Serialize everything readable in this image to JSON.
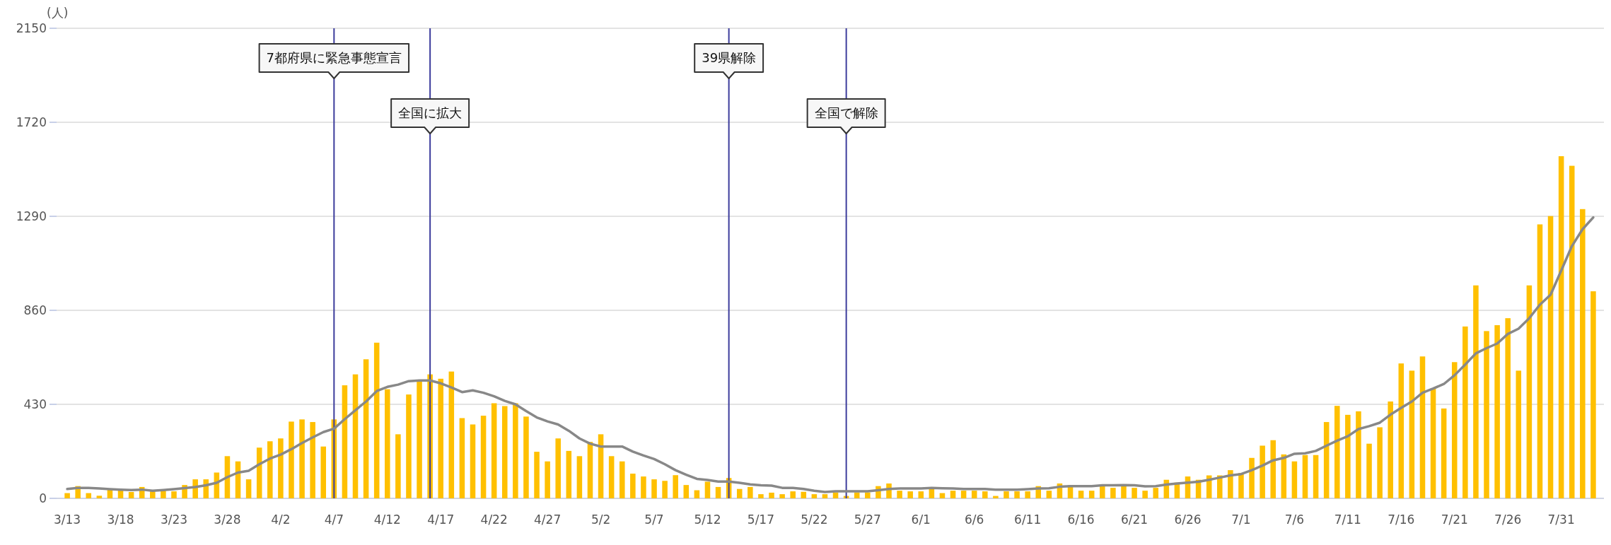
{
  "chart_data": {
    "type": "bar",
    "ylabel": "(人)",
    "x": [
      "--03-13",
      "--03-14",
      "--03-15",
      "--03-16",
      "--03-17",
      "--03-18",
      "--03-19",
      "--03-20",
      "--03-21",
      "--03-22",
      "--03-23",
      "--03-24",
      "--03-25",
      "--03-26",
      "--03-27",
      "--03-28",
      "--03-29",
      "--03-30",
      "--03-31",
      "--04-01",
      "--04-02",
      "--04-03",
      "--04-04",
      "--04-05",
      "--04-06",
      "--04-07",
      "--04-08",
      "--04-09",
      "--04-10",
      "--04-11",
      "--04-12",
      "--04-13",
      "--04-14",
      "--04-15",
      "--04-16",
      "--04-17",
      "--04-18",
      "--04-19",
      "--04-20",
      "--04-21",
      "--04-22",
      "--04-23",
      "--04-24",
      "--04-25",
      "--04-26",
      "--04-27",
      "--04-28",
      "--04-29",
      "--04-30",
      "--05-01",
      "--05-02",
      "--05-03",
      "--05-04",
      "--05-05",
      "--05-06",
      "--05-07",
      "--05-08",
      "--05-09",
      "--05-10",
      "--05-11",
      "--05-12",
      "--05-13",
      "--05-14",
      "--05-15",
      "--05-16",
      "--05-17",
      "--05-18",
      "--05-19",
      "--05-20",
      "--05-21",
      "--05-22",
      "--05-23",
      "--05-24",
      "--05-25",
      "--05-26",
      "--05-27",
      "--05-28",
      "--05-29",
      "--05-30",
      "--05-31",
      "--06-01",
      "--06-02",
      "--06-03",
      "--06-04",
      "--06-05",
      "--06-06",
      "--06-07",
      "--06-08",
      "--06-09",
      "--06-10",
      "--06-11",
      "--06-12",
      "--06-13",
      "--06-14",
      "--06-15",
      "--06-16",
      "--06-17",
      "--06-18",
      "--06-19",
      "--06-20",
      "--06-21",
      "--06-22",
      "--06-23",
      "--06-24",
      "--06-25",
      "--06-26",
      "--06-27",
      "--06-28",
      "--06-29",
      "--06-30",
      "--07-01",
      "--07-02",
      "--07-03",
      "--07-04",
      "--07-05",
      "--07-06",
      "--07-07",
      "--07-08",
      "--07-09",
      "--07-10",
      "--07-11",
      "--07-12",
      "--07-13",
      "--07-14",
      "--07-15",
      "--07-16",
      "--07-17",
      "--07-18",
      "--07-19",
      "--07-20",
      "--07-21",
      "--07-22",
      "--07-23",
      "--07-24",
      "--07-25",
      "--07-26",
      "--07-27",
      "--07-28",
      "--07-29",
      "--07-30",
      "--07-31",
      "--08-01",
      "--08-02",
      "--08-03"
    ],
    "series": [
      {
        "color": "#ffc000",
        "values": [
          24,
          56,
          24,
          12,
          40,
          40,
          29,
          52,
          32,
          35,
          32,
          61,
          87,
          87,
          118,
          193,
          169,
          87,
          232,
          261,
          274,
          351,
          361,
          349,
          237,
          361,
          517,
          567,
          636,
          712,
          499,
          293,
          475,
          539,
          567,
          547,
          580,
          367,
          338,
          378,
          435,
          422,
          435,
          374,
          213,
          169,
          274,
          217,
          193,
          258,
          293,
          193,
          169,
          113,
          100,
          87,
          80,
          106,
          61,
          37,
          76,
          52,
          93,
          43,
          52,
          19,
          26,
          19,
          32,
          30,
          19,
          19,
          27,
          11,
          27,
          27,
          56,
          68,
          35,
          32,
          32,
          43,
          24,
          35,
          35,
          35,
          32,
          11,
          32,
          32,
          32,
          56,
          35,
          68,
          60,
          35,
          35,
          56,
          48,
          56,
          48,
          35,
          48,
          85,
          72,
          100,
          85,
          105,
          105,
          129,
          116,
          185,
          241,
          266,
          201,
          169,
          198,
          198,
          349,
          423,
          382,
          398,
          250,
          325,
          443,
          617,
          584,
          649,
          504,
          411,
          623,
          786,
          974,
          765,
          792,
          824,
          584,
          974,
          1253,
          1291,
          1565,
          1521,
          1323,
          947
        ]
      },
      {
        "type": "line",
        "color": "#888888",
        "values": [
          43,
          48,
          48,
          45,
          42,
          40,
          38,
          40,
          35,
          38,
          42,
          47,
          52,
          60,
          71,
          97,
          118,
          126,
          156,
          182,
          200,
          225,
          253,
          279,
          303,
          319,
          362,
          403,
          443,
          491,
          510,
          520,
          536,
          539,
          539,
          526,
          507,
          486,
          494,
          483,
          467,
          446,
          430,
          399,
          370,
          352,
          338,
          309,
          274,
          250,
          237,
          237,
          237,
          214,
          196,
          180,
          156,
          129,
          108,
          89,
          84,
          77,
          77,
          71,
          64,
          60,
          58,
          48,
          48,
          43,
          35,
          29,
          32,
          32,
          32,
          32,
          37,
          43,
          45,
          45,
          45,
          48,
          46,
          45,
          43,
          43,
          43,
          40,
          40,
          40,
          42,
          45,
          46,
          53,
          56,
          56,
          56,
          60,
          60,
          61,
          60,
          55,
          56,
          63,
          68,
          72,
          76,
          85,
          95,
          105,
          111,
          129,
          150,
          174,
          185,
          204,
          206,
          217,
          241,
          264,
          284,
          317,
          330,
          346,
          383,
          414,
          443,
          483,
          502,
          523,
          563,
          612,
          663,
          687,
          708,
          752,
          776,
          824,
          886,
          931,
          1042,
          1154,
          1231,
          1285
        ]
      }
    ],
    "xlim": [
      "--03-12",
      "--08-04"
    ],
    "xticks": [
      {
        "value": "--03-13",
        "label": "3/13"
      },
      {
        "value": "--03-18",
        "label": "3/18"
      },
      {
        "value": "--03-23",
        "label": "3/23"
      },
      {
        "value": "--03-28",
        "label": "3/28"
      },
      {
        "value": "--04-02",
        "label": "4/2"
      },
      {
        "value": "--04-07",
        "label": "4/7"
      },
      {
        "value": "--04-12",
        "label": "4/12"
      },
      {
        "value": "--04-17",
        "label": "4/17"
      },
      {
        "value": "--04-22",
        "label": "4/22"
      },
      {
        "value": "--04-27",
        "label": "4/27"
      },
      {
        "value": "--05-02",
        "label": "5/2"
      },
      {
        "value": "--05-07",
        "label": "5/7"
      },
      {
        "value": "--05-12",
        "label": "5/12"
      },
      {
        "value": "--05-17",
        "label": "5/17"
      },
      {
        "value": "--05-22",
        "label": "5/22"
      },
      {
        "value": "--05-27",
        "label": "5/27"
      },
      {
        "value": "--06-01",
        "label": "6/1"
      },
      {
        "value": "--06-06",
        "label": "6/6"
      },
      {
        "value": "--06-11",
        "label": "6/11"
      },
      {
        "value": "--06-16",
        "label": "6/16"
      },
      {
        "value": "--06-21",
        "label": "6/21"
      },
      {
        "value": "--06-26",
        "label": "6/26"
      },
      {
        "value": "--07-01",
        "label": "7/1"
      },
      {
        "value": "--07-06",
        "label": "7/6"
      },
      {
        "value": "--07-11",
        "label": "7/11"
      },
      {
        "value": "--07-16",
        "label": "7/16"
      },
      {
        "value": "--07-21",
        "label": "7/21"
      },
      {
        "value": "--07-26",
        "label": "7/26"
      },
      {
        "value": "--07-31",
        "label": "7/31"
      }
    ],
    "ylim": [
      0,
      2150
    ],
    "yticks": [
      0,
      430,
      860,
      1290,
      1720,
      2150
    ],
    "grid": "y",
    "ref_lines": [
      {
        "axis": "x",
        "value": "--04-07",
        "label": "7都府県に緊急事態宣言",
        "color": "#3c3c9c"
      },
      {
        "axis": "x",
        "value": "--04-16",
        "label": "全国に拡大",
        "color": "#3c3c9c"
      },
      {
        "axis": "x",
        "value": "--05-14",
        "label": "39県解除",
        "color": "#3c3c9c"
      },
      {
        "axis": "x",
        "value": "--05-25",
        "label": "全国で解除",
        "color": "#3c3c9c"
      }
    ]
  }
}
